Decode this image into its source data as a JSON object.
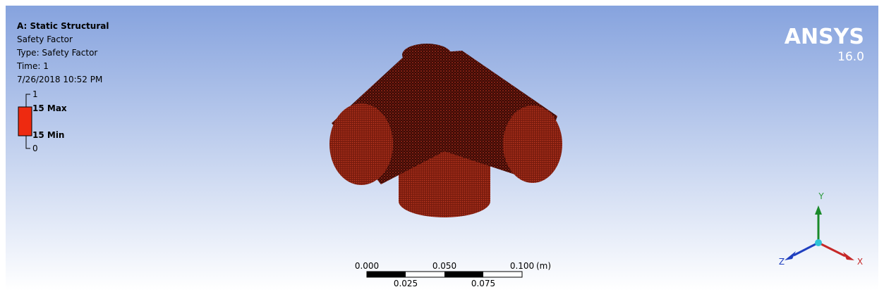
{
  "result_info": {
    "title": "A: Static Structural",
    "result": "Safety Factor",
    "type": "Type: Safety Factor",
    "time": "Time: 1",
    "date": "7/26/2018 10:52 PM"
  },
  "legend": {
    "top": "1",
    "max": "15 Max",
    "min": "15 Min",
    "bottom": "0"
  },
  "logo": {
    "name": "ANSYS",
    "version": "16.0"
  },
  "scale_bar": {
    "top_labels": [
      "0.000",
      "0.050",
      "0.100"
    ],
    "unit": "(m)",
    "bottom_labels": [
      "0.025",
      "0.075"
    ]
  },
  "triad": {
    "y": "Y",
    "z": "Z",
    "x": "X"
  }
}
